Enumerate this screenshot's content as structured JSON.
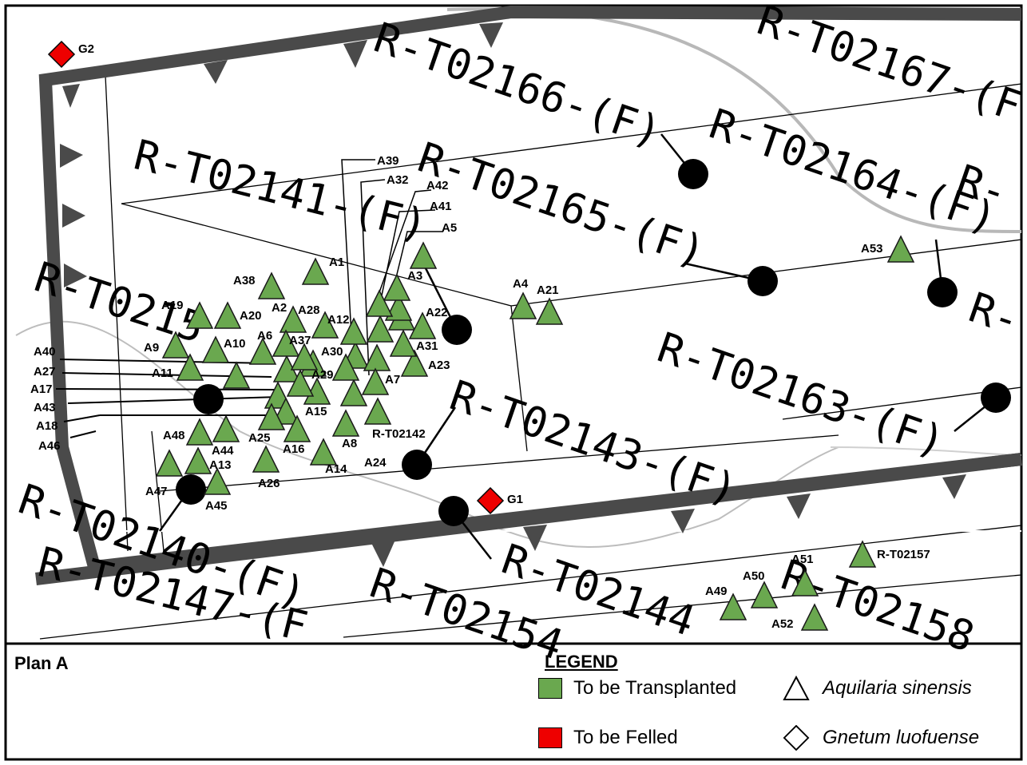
{
  "plan_label": "Plan A",
  "legend": {
    "title": "LEGEND",
    "transplanted": "To be Transplanted",
    "felled": "To be Felled",
    "aquilaria": "Aquilaria sinensis",
    "gnetum": "Gnetum luofuense",
    "colors": {
      "transplanted": "#6aa84f",
      "felled": "#ee0000"
    }
  },
  "lot_labels": [
    "R-T02166-(F)",
    "R-T02167-(F",
    "R-T02141-(F)",
    "R-T02165-(F)",
    "R-T02164-(F)",
    "R-T02163-(F)",
    "R-T02143-(F)",
    "R-T02140-(F)",
    "R-T02147-(F",
    "R-T02154",
    "R-T02144",
    "R-T02158",
    "R-T0215",
    "R-",
    "R-"
  ],
  "tree_labels": [
    "A1",
    "A2",
    "A3",
    "A4",
    "A5",
    "A6",
    "A7",
    "A8",
    "A9",
    "A10",
    "A11",
    "A12",
    "A13",
    "A14",
    "A15",
    "A16",
    "A17",
    "A18",
    "A19",
    "A20",
    "A21",
    "A22",
    "A23",
    "A24",
    "A25",
    "A26",
    "A27",
    "A28",
    "A29",
    "A30",
    "A31",
    "A32",
    "A37",
    "A38",
    "A39",
    "A40",
    "A41",
    "A42",
    "A43",
    "A44",
    "A45",
    "A46",
    "A47",
    "A48",
    "A49",
    "A50",
    "A51",
    "A52",
    "A53"
  ],
  "ref_labels": [
    "R-T02142",
    "R-T02157"
  ],
  "gnetum_labels": [
    "G1",
    "G2"
  ]
}
